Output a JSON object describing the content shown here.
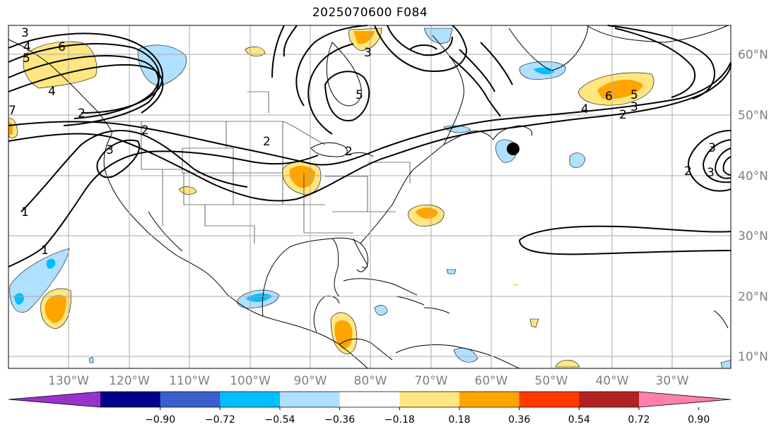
{
  "title": "2025070600 F084",
  "map": {
    "lon_labels": [
      "130°W",
      "120°W",
      "110°W",
      "100°W",
      "90°W",
      "80°W",
      "70°W",
      "60°W",
      "50°W",
      "40°W",
      "30°W"
    ],
    "lat_labels": [
      "60°N",
      "50°N",
      "40°N",
      "30°N",
      "20°N",
      "10°N"
    ],
    "contour_labels": [
      "3",
      "4",
      "5",
      "6",
      "2",
      "3",
      "2",
      "1",
      "1",
      "5",
      "3",
      "4",
      "5",
      "6",
      "2",
      "3",
      "2",
      "3",
      "3",
      "2",
      "2",
      "4",
      "7"
    ],
    "marker": "storm-center"
  },
  "colorbar": {
    "ticks": [
      "−0.90",
      "−0.72",
      "−0.54",
      "−0.36",
      "−0.18",
      "0.18",
      "0.36",
      "0.54",
      "0.72",
      "0.90"
    ],
    "colors": [
      "#9932cc",
      "#00008b",
      "#3a5fcd",
      "#00bfff",
      "#b0e0ff",
      "#ffffff",
      "#ffe680",
      "#ffa500",
      "#ff3a00",
      "#b22222",
      "#ff80b0"
    ]
  }
}
